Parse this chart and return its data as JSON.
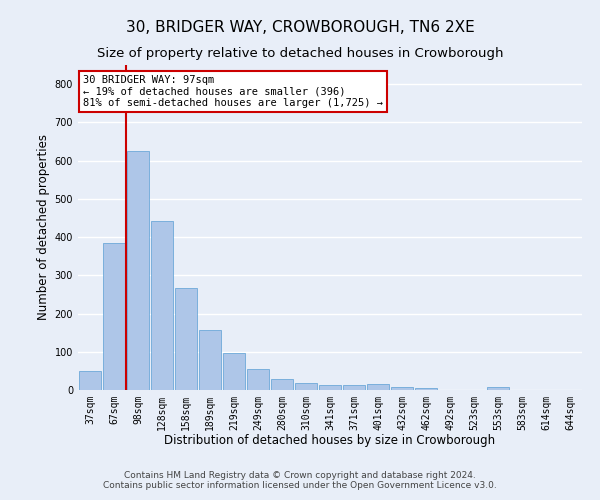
{
  "title": "30, BRIDGER WAY, CROWBOROUGH, TN6 2XE",
  "subtitle": "Size of property relative to detached houses in Crowborough",
  "xlabel": "Distribution of detached houses by size in Crowborough",
  "ylabel": "Number of detached properties",
  "categories": [
    "37sqm",
    "67sqm",
    "98sqm",
    "128sqm",
    "158sqm",
    "189sqm",
    "219sqm",
    "249sqm",
    "280sqm",
    "310sqm",
    "341sqm",
    "371sqm",
    "401sqm",
    "432sqm",
    "462sqm",
    "492sqm",
    "523sqm",
    "553sqm",
    "583sqm",
    "614sqm",
    "644sqm"
  ],
  "values": [
    50,
    385,
    625,
    443,
    268,
    157,
    98,
    55,
    30,
    18,
    12,
    13,
    15,
    9,
    6,
    0,
    0,
    8,
    0,
    0,
    0
  ],
  "bar_color": "#aec6e8",
  "bar_edgecolor": "#5a9fd4",
  "vline_x_index": 2,
  "vline_color": "#cc0000",
  "annotation_text": "30 BRIDGER WAY: 97sqm\n← 19% of detached houses are smaller (396)\n81% of semi-detached houses are larger (1,725) →",
  "annotation_box_color": "#cc0000",
  "ylim": [
    0,
    850
  ],
  "yticks": [
    0,
    100,
    200,
    300,
    400,
    500,
    600,
    700,
    800
  ],
  "footer_line1": "Contains HM Land Registry data © Crown copyright and database right 2024.",
  "footer_line2": "Contains public sector information licensed under the Open Government Licence v3.0.",
  "bg_color": "#e8eef8",
  "plot_bg_color": "#e8eef8",
  "grid_color": "#ffffff",
  "title_fontsize": 11,
  "subtitle_fontsize": 9.5,
  "axis_label_fontsize": 8.5,
  "tick_fontsize": 7,
  "footer_fontsize": 6.5,
  "annotation_fontsize": 7.5
}
